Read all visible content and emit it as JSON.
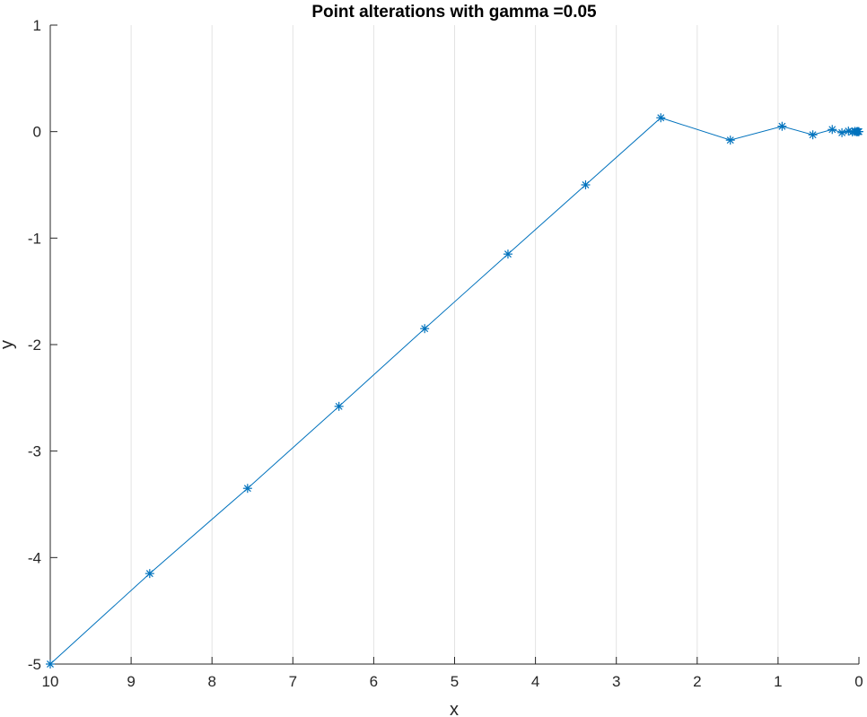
{
  "chart_data": {
    "type": "line",
    "title": "Point alterations with gamma =0.05",
    "xlabel": "x",
    "ylabel": "y",
    "xlim": [
      10,
      0
    ],
    "x_reversed": true,
    "ylim": [
      -5,
      1
    ],
    "xticks": [
      10,
      9,
      8,
      7,
      6,
      5,
      4,
      3,
      2,
      1,
      0
    ],
    "yticks": [
      1,
      0,
      -1,
      -2,
      -3,
      -4,
      -5
    ],
    "xtick_labels": [
      "10",
      "9",
      "8",
      "7",
      "6",
      "5",
      "4",
      "3",
      "2",
      "1",
      "0"
    ],
    "ytick_labels": [
      "1",
      "0",
      "-1",
      "-2",
      "-3",
      "-4",
      "-5"
    ],
    "grid": "x",
    "marker": "asterisk",
    "color": "#0072BD",
    "series": [
      {
        "x": [
          10,
          8.77,
          7.56,
          6.43,
          5.37,
          4.34,
          3.38,
          2.45,
          1.59,
          0.95,
          0.57,
          0.33,
          0.21,
          0.13,
          0.08,
          0.05,
          0.03,
          0.02,
          0.01,
          0.0
        ],
        "y": [
          -5,
          -4.15,
          -3.35,
          -2.58,
          -1.85,
          -1.15,
          -0.5,
          0.13,
          -0.08,
          0.05,
          -0.03,
          0.02,
          -0.01,
          0.005,
          -0.003,
          0.002,
          -0.001,
          0.0005,
          -0.0002,
          0.0
        ]
      }
    ]
  }
}
